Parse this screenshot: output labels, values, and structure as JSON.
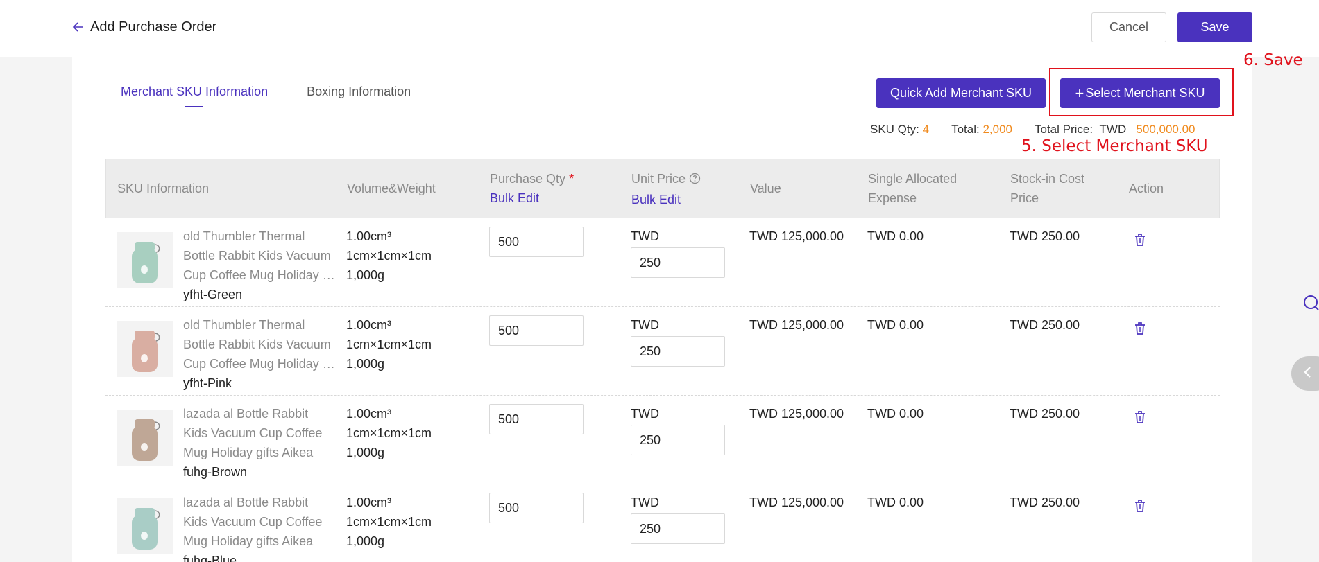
{
  "header": {
    "title": "Add Purchase Order",
    "cancel_label": "Cancel",
    "save_label": "Save"
  },
  "tabs": [
    {
      "label": "Merchant SKU Information",
      "active": true
    },
    {
      "label": "Boxing Information",
      "active": false
    }
  ],
  "toolbar": {
    "quick_add_label": "Quick Add Merchant SKU",
    "select_label": "Select Merchant SKU",
    "select_icon": "+"
  },
  "summary": {
    "sku_qty_label": "SKU Qty:",
    "sku_qty_value": "4",
    "total_label": "Total:",
    "total_value": "2,000",
    "total_price_label": "Total Price:",
    "currency": "TWD",
    "total_price_value": "500,000.00"
  },
  "annotations": {
    "save_note": "6. Save",
    "select_note": "5. Select Merchant SKU"
  },
  "table": {
    "headers": {
      "sku_info": "SKU Information",
      "volume_weight": "Volume&Weight",
      "purchase_qty": "Purchase Qty",
      "purchase_qty_required": "*",
      "bulk_edit": "Bulk Edit",
      "unit_price": "Unit Price",
      "value": "Value",
      "single_allocated_line1": "Single Allocated",
      "single_allocated_line2": "Expense",
      "stock_in_line1": "Stock-in Cost",
      "stock_in_line2": "Price",
      "action": "Action"
    },
    "rows": [
      {
        "name_l1": "old Thumbler Thermal",
        "name_l2": "Bottle Rabbit Kids Vacuum",
        "name_l3": "Cup Coffee Mug Holiday gifts Aikea",
        "sku": "yfht-Green",
        "volume": "1.00cm³",
        "dims": "1cm×1cm×1cm",
        "weight": "1,000g",
        "qty": "500",
        "currency": "TWD",
        "unit_price": "250",
        "value": "TWD 125,000.00",
        "allocated": "TWD 0.00",
        "cost_price": "TWD 250.00",
        "thumb_color": "#a8cfc0"
      },
      {
        "name_l1": "old Thumbler Thermal",
        "name_l2": "Bottle Rabbit Kids Vacuum",
        "name_l3": "Cup Coffee Mug Holiday gifts Aikea",
        "sku": "yfht-Pink",
        "volume": "1.00cm³",
        "dims": "1cm×1cm×1cm",
        "weight": "1,000g",
        "qty": "500",
        "currency": "TWD",
        "unit_price": "250",
        "value": "TWD 125,000.00",
        "allocated": "TWD 0.00",
        "cost_price": "TWD 250.00",
        "thumb_color": "#d9aea2"
      },
      {
        "name_l1": "lazada al Bottle Rabbit",
        "name_l2": "Kids Vacuum Cup Coffee",
        "name_l3": "Mug Holiday gifts Aikea",
        "sku": "fuhg-Brown",
        "volume": "1.00cm³",
        "dims": "1cm×1cm×1cm",
        "weight": "1,000g",
        "qty": "500",
        "currency": "TWD",
        "unit_price": "250",
        "value": "TWD 125,000.00",
        "allocated": "TWD 0.00",
        "cost_price": "TWD 250.00",
        "thumb_color": "#bfa796"
      },
      {
        "name_l1": "lazada al Bottle Rabbit",
        "name_l2": "Kids Vacuum Cup Coffee",
        "name_l3": "Mug Holiday gifts Aikea",
        "sku": "fuhg-Blue",
        "volume": "1.00cm³",
        "dims": "1cm×1cm×1cm",
        "weight": "1,000g",
        "qty": "500",
        "currency": "TWD",
        "unit_price": "250",
        "value": "TWD 125,000.00",
        "allocated": "TWD 0.00",
        "cost_price": "TWD 250.00",
        "thumb_color": "#a9cdc6"
      }
    ]
  },
  "colors": {
    "accent": "#4a32be",
    "highlight": "#f08a1d",
    "annotation": "#e0121c"
  }
}
